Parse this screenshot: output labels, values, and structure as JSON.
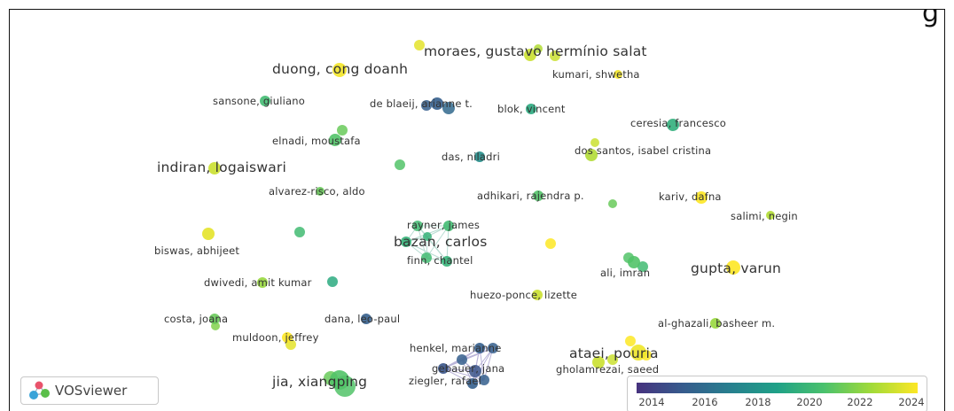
{
  "app": {
    "name": "VOSviewer"
  },
  "header_fragment": "g",
  "legend": {
    "ticks": [
      "2014",
      "2016",
      "2018",
      "2020",
      "2022",
      "2024"
    ],
    "colors": [
      "#46327e",
      "#365c8d",
      "#277f8e",
      "#1fa187",
      "#4ac16d",
      "#a0da39",
      "#fde725"
    ]
  },
  "nodes": [
    {
      "label": "moraes, gustavo hermínio salat",
      "year": 2023.5
    },
    {
      "label": "duong, cong doanh",
      "year": 2024.3
    },
    {
      "label": "kumari, shwetha",
      "year": 2024.3
    },
    {
      "label": "sansone, giuliano",
      "year": 2020.5
    },
    {
      "label": "de blaeij, arianne t.",
      "year": 2015.5
    },
    {
      "label": "blok, vincent",
      "year": 2019.5
    },
    {
      "label": "ceresia, francesco",
      "year": 2019.8
    },
    {
      "label": "elnadi, moustafa",
      "year": 2021.0
    },
    {
      "label": "das, niladri",
      "year": 2018.0
    },
    {
      "label": "dos santos, isabel cristina",
      "year": 2023.0
    },
    {
      "label": "indiran, logaiswari",
      "year": 2023.5
    },
    {
      "label": "alvarez-risco, aldo",
      "year": 2021.5
    },
    {
      "label": "adhikari, rajendra p.",
      "year": 2021.0
    },
    {
      "label": "kariv, dafna",
      "year": 2024.5
    },
    {
      "label": "salimi, negin",
      "year": 2023.0
    },
    {
      "label": "rayner, james",
      "year": 2020.5
    },
    {
      "label": "bazan, carlos",
      "year": 2020.0
    },
    {
      "label": "biswas, abhijeet",
      "year": 2024.0
    },
    {
      "label": "finn, chantel",
      "year": 2020.0
    },
    {
      "label": "ali, imran",
      "year": 2021.0
    },
    {
      "label": "gupta, varun",
      "year": 2024.5
    },
    {
      "label": "dwivedi, amit kumar",
      "year": 2022.5
    },
    {
      "label": "huezo-ponce, lizette",
      "year": 2023.5
    },
    {
      "label": "costa, joana",
      "year": 2021.5
    },
    {
      "label": "dana, leo-paul",
      "year": 2015.5
    },
    {
      "label": "al-ghazali, basheer m.",
      "year": 2022.5
    },
    {
      "label": "muldoon, jeffrey",
      "year": 2024.5
    },
    {
      "label": "henkel, marianne",
      "year": 2015.5
    },
    {
      "label": "ataei, pouria",
      "year": 2024.2
    },
    {
      "label": "gebauer, jana",
      "year": 2015.0
    },
    {
      "label": "gholamrezai, saeed",
      "year": 2023.5
    },
    {
      "label": "jia, xiangping",
      "year": 2021.0
    },
    {
      "label": "ziegler, rafael",
      "year": 2015.5
    }
  ]
}
